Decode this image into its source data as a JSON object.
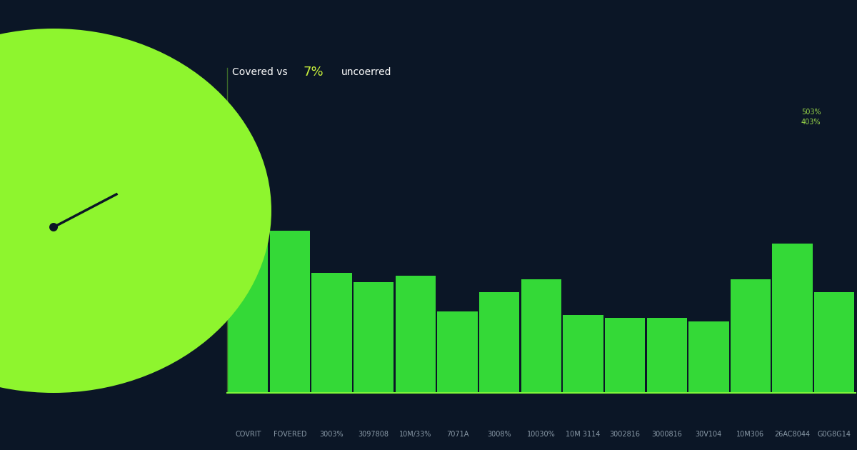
{
  "chart_data": {
    "type": "bar",
    "title": "Covered vs",
    "annotations": [
      "7%",
      "uncoerred",
      "503%",
      "403%"
    ],
    "categories": [
      "COVRIT",
      "FOVERED",
      "3003%",
      "3097808",
      "10M/33%",
      "7071A",
      "3008%",
      "10030%",
      "10M 3114",
      "3002816",
      "3000816",
      "30V104",
      "10M306",
      "26AC8044",
      "G0G8G14"
    ],
    "values": [
      50,
      50,
      37,
      34,
      36,
      25,
      31,
      35,
      24,
      23,
      23,
      22,
      35,
      46,
      31
    ],
    "color": "#39ef3a",
    "ylim": [
      0,
      100
    ],
    "yticks": [],
    "tick_labels": "x"
  }
}
